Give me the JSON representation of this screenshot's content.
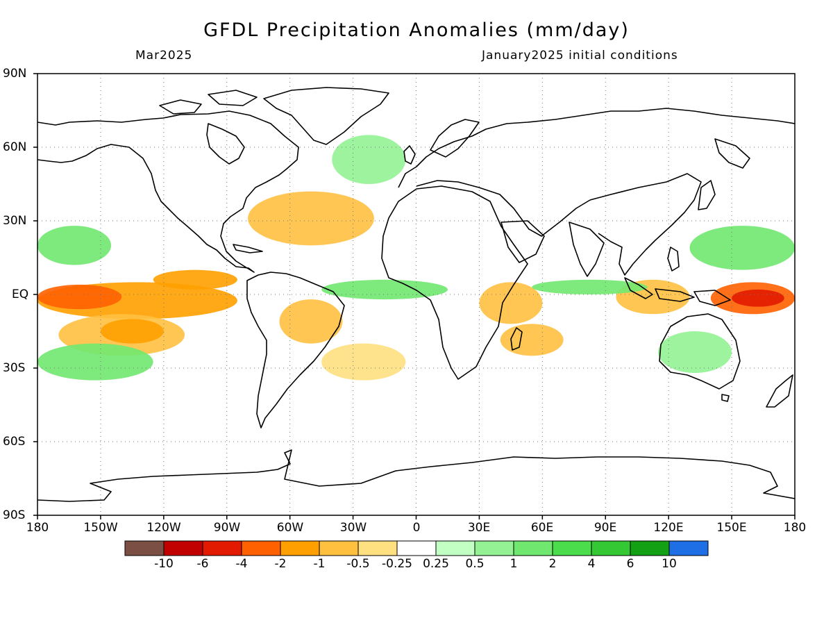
{
  "title": "GFDL Precipitation Anomalies (mm/day)",
  "valid_month": "Mar2025",
  "initial_conditions": "January2025 initial conditions",
  "latitude_labels": [
    "90N",
    "60N",
    "30N",
    "EQ",
    "30S",
    "60S",
    "90S"
  ],
  "longitude_labels": [
    "180",
    "150W",
    "120W",
    "90W",
    "60W",
    "30W",
    "0",
    "30E",
    "60E",
    "90E",
    "120E",
    "150E",
    "180"
  ],
  "colorbar": {
    "labels": [
      "-10",
      "-6",
      "-4",
      "-2",
      "-1",
      "-0.5",
      "-0.25",
      "0.25",
      "0.5",
      "1",
      "2",
      "4",
      "6",
      "10"
    ],
    "colors": [
      "#7b4f44",
      "#c10000",
      "#e21a00",
      "#ff6000",
      "#ffa000",
      "#ffc040",
      "#ffe080",
      "#ffffff",
      "#c2ffc2",
      "#94f294",
      "#70e870",
      "#4cdd4c",
      "#34c834",
      "#14a014",
      "#1e6fe6"
    ]
  },
  "map": {
    "projection": "cylindrical equidistant",
    "lon_range": [
      -180,
      180
    ],
    "lat_range": [
      -90,
      90
    ],
    "gridlines": "dotted every 30 degrees",
    "anomaly_regions": [
      {
        "name": "Equatorial Pacific dry band",
        "lon": [
          -180,
          -85
        ],
        "lat": [
          -10,
          5
        ],
        "value": -2
      },
      {
        "name": "Equatorial Pacific core",
        "lon": [
          -180,
          -140
        ],
        "lat": [
          -6,
          4
        ],
        "value": -4
      },
      {
        "name": "South Pacific dry band",
        "lon": [
          -170,
          -110
        ],
        "lat": [
          -25,
          -8
        ],
        "value": -1
      },
      {
        "name": "South Pacific core",
        "lon": [
          -150,
          -120
        ],
        "lat": [
          -20,
          -10
        ],
        "value": -2
      },
      {
        "name": "Eastern tropical Pacific",
        "lon": [
          -125,
          -85
        ],
        "lat": [
          2,
          10
        ],
        "value": -2
      },
      {
        "name": "North Atlantic dry",
        "lon": [
          -80,
          -20
        ],
        "lat": [
          20,
          42
        ],
        "value": -1
      },
      {
        "name": "Brazil dry",
        "lon": [
          -65,
          -35
        ],
        "lat": [
          -20,
          -2
        ],
        "value": -1
      },
      {
        "name": "South Atlantic dry band",
        "lon": [
          -45,
          -5
        ],
        "lat": [
          -35,
          -20
        ],
        "value": -0.5
      },
      {
        "name": "East Africa dry",
        "lon": [
          30,
          60
        ],
        "lat": [
          -12,
          5
        ],
        "value": -1
      },
      {
        "name": "Southern Indian Ocean dry",
        "lon": [
          40,
          70
        ],
        "lat": [
          -25,
          -12
        ],
        "value": -1
      },
      {
        "name": "Maritime Continent dry",
        "lon": [
          95,
          130
        ],
        "lat": [
          -8,
          6
        ],
        "value": -1
      },
      {
        "name": "Western Pacific dry",
        "lon": [
          140,
          180
        ],
        "lat": [
          -8,
          5
        ],
        "value": -4
      },
      {
        "name": "Western Pacific core",
        "lon": [
          150,
          175
        ],
        "lat": [
          -5,
          2
        ],
        "value": -6
      },
      {
        "name": "Subtropical North Pacific wet",
        "lon": [
          -180,
          -145
        ],
        "lat": [
          12,
          28
        ],
        "value": 1
      },
      {
        "name": "South Pacific wet",
        "lon": [
          -180,
          -125
        ],
        "lat": [
          -35,
          -20
        ],
        "value": 1
      },
      {
        "name": "Equatorial Atlantic wet",
        "lon": [
          -45,
          15
        ],
        "lat": [
          -2,
          6
        ],
        "value": 1
      },
      {
        "name": "Indian Ocean wet",
        "lon": [
          55,
          110
        ],
        "lat": [
          0,
          6
        ],
        "value": 1
      },
      {
        "name": "Australia wet",
        "lon": [
          115,
          150
        ],
        "lat": [
          -32,
          -15
        ],
        "value": 0.5
      },
      {
        "name": "North Atlantic wet",
        "lon": [
          -40,
          -5
        ],
        "lat": [
          45,
          65
        ],
        "value": 0.5
      },
      {
        "name": "West Pacific subtropical wet",
        "lon": [
          130,
          180
        ],
        "lat": [
          10,
          28
        ],
        "value": 1
      }
    ]
  }
}
